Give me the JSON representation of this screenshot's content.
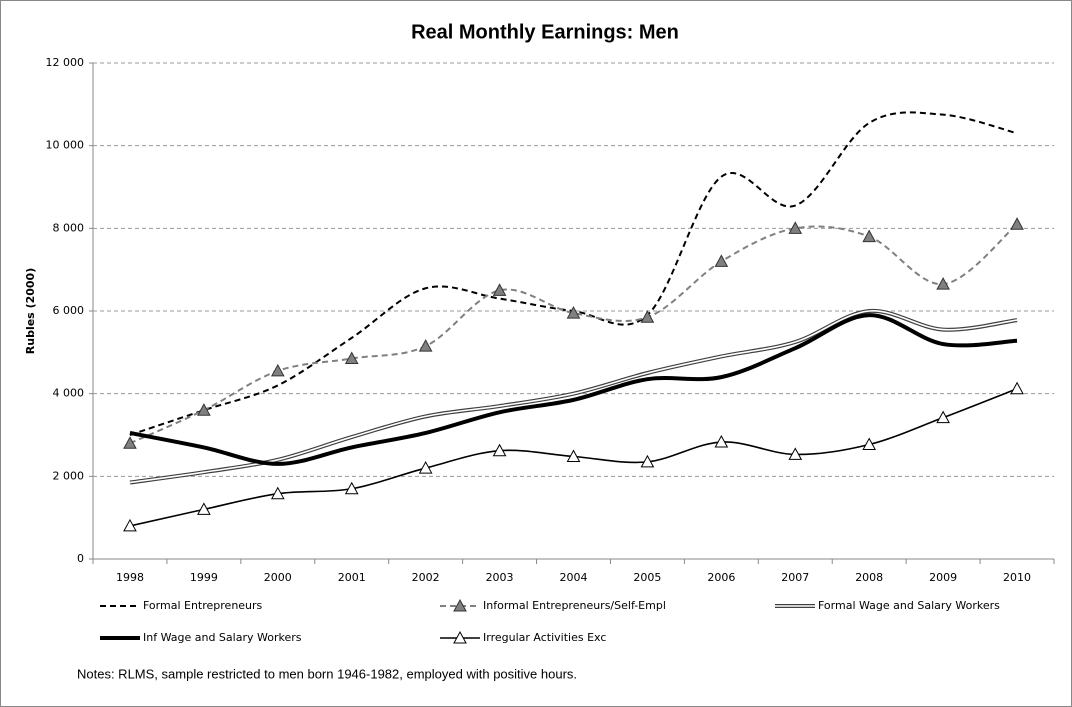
{
  "chart_data": {
    "type": "line",
    "title": "Real Monthly Earnings: Men",
    "y_label": "Rubles (2000)",
    "note": "Notes: RLMS, sample restricted to men born 1946-1982,  employed with positive hours.",
    "categories": [
      "1998",
      "1999",
      "2000",
      "2001",
      "2002",
      "2003",
      "2004",
      "2005",
      "2006",
      "2007",
      "2008",
      "2009",
      "2010"
    ],
    "ylim": [
      0,
      12000
    ],
    "yticks": [
      0,
      {
        "value": 2000,
        "label": "2 000"
      },
      {
        "value": 4000,
        "label": "4 000"
      },
      {
        "value": 6000,
        "label": "6 000"
      },
      {
        "value": 8000,
        "label": "8 000"
      },
      {
        "value": 10000,
        "label": "10 000"
      },
      {
        "value": 12000,
        "label": "12 000"
      }
    ],
    "grid": true,
    "series": [
      {
        "name": "Formal Entrepreneurs",
        "color": "#000000",
        "line_style": "dashed",
        "line_width": 2,
        "marker": "none",
        "values": [
          3000,
          3600,
          4200,
          5350,
          6550,
          6300,
          6000,
          5900,
          9250,
          8550,
          10550,
          10750,
          10300
        ]
      },
      {
        "name": "Informal Entrepreneurs/Self-Empl",
        "color": "#808080",
        "line_style": "dashed",
        "line_width": 2,
        "marker": "triangle-filled",
        "values": [
          2800,
          3600,
          4550,
          4850,
          5150,
          6500,
          5950,
          5850,
          7200,
          8000,
          7800,
          6650,
          8100
        ]
      },
      {
        "name": "Formal Wage and Salary Workers",
        "color": "#404040",
        "line_style": "double",
        "line_width": 4,
        "marker": "none",
        "values": [
          1850,
          2100,
          2400,
          2950,
          3450,
          3700,
          4000,
          4500,
          4900,
          5250,
          6000,
          5550,
          5780
        ]
      },
      {
        "name": "Inf Wage and Salary Workers",
        "color": "#000000",
        "line_style": "solid",
        "line_width": 4,
        "marker": "none",
        "values": [
          3050,
          2700,
          2300,
          2700,
          3050,
          3550,
          3850,
          4350,
          4400,
          5100,
          5900,
          5200,
          5280
        ]
      },
      {
        "name": "Irregular Activities Exc",
        "color": "#000000",
        "line_style": "solid",
        "line_width": 1.6,
        "marker": "triangle-open",
        "values": [
          800,
          1200,
          1580,
          1700,
          2200,
          2620,
          2480,
          2350,
          2830,
          2530,
          2770,
          3420,
          4120
        ]
      }
    ]
  }
}
